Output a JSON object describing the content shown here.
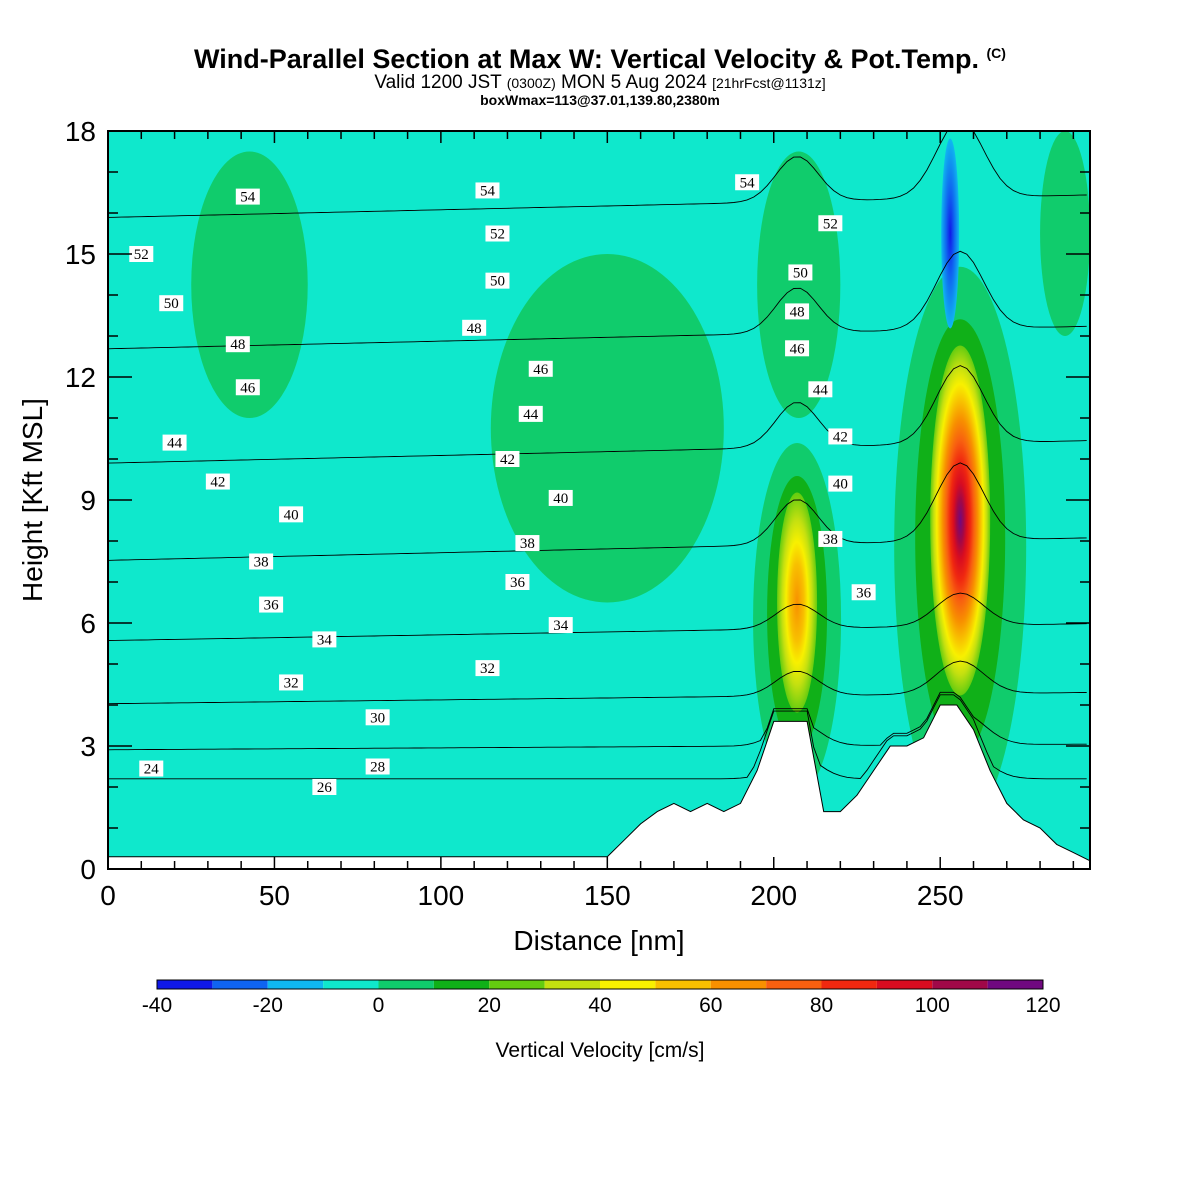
{
  "header": {
    "title": "Wind-Parallel Section at Max W: Vertical Velocity & Pot.Temp.",
    "copyright": "(C)",
    "valid_prefix": "Valid 1200 JST",
    "valid_utc": "(0300Z)",
    "valid_date": "MON 5 Aug 2024",
    "forecast": "[21hrFcst@1131z]",
    "boxinfo": "boxWmax=113@37.01,139.80,2380m"
  },
  "colorbar": {
    "title": "Vertical Velocity [cm/s]",
    "ticks": [
      "-40",
      "-20",
      "0",
      "20",
      "40",
      "60",
      "80",
      "100",
      "120"
    ],
    "levels": [
      -40,
      -30,
      -20,
      -10,
      0,
      10,
      20,
      30,
      40,
      50,
      60,
      70,
      80,
      90,
      100,
      110,
      120
    ],
    "colors": [
      "#1018e8",
      "#0f64f0",
      "#0fb8f0",
      "#0fe8cc",
      "#10cc6c",
      "#10b018",
      "#64cc10",
      "#c4e010",
      "#f8f000",
      "#f8c000",
      "#f89000",
      "#f86010",
      "#f02810",
      "#d80c20",
      "#a00848",
      "#700880"
    ]
  },
  "chart_data": {
    "type": "heatmap",
    "title": "Wind-Parallel Section at Max W: Vertical Velocity & Pot.Temp.",
    "xlabel": "Distance [nm]",
    "ylabel": "Height [Kft MSL]",
    "xlim": [
      0,
      295
    ],
    "ylim": [
      0,
      18
    ],
    "x_ticks": [
      "0",
      "50",
      "100",
      "150",
      "200",
      "250"
    ],
    "y_ticks": [
      "0",
      "3",
      "6",
      "9",
      "12",
      "15",
      "18"
    ],
    "field": "vertical velocity (cm/s)",
    "background_w": 0,
    "weak_ascent_zones_w_0_10": [
      {
        "x": [
          25,
          60
        ],
        "y": [
          11.0,
          17.5
        ]
      },
      {
        "x": [
          115,
          185
        ],
        "y": [
          6.5,
          15.0
        ]
      },
      {
        "x": [
          195,
          220
        ],
        "y": [
          11.0,
          17.5
        ]
      },
      {
        "x": [
          280,
          295
        ],
        "y": [
          13.0,
          18.0
        ]
      }
    ],
    "updraft_cores": [
      {
        "x": 207,
        "y": 6.5,
        "w_max": 50
      },
      {
        "x": 256,
        "y": 8.5,
        "w_max": 113
      }
    ],
    "downdraft_cores": [
      {
        "x": 253,
        "y": 15.5,
        "w_min": -40
      }
    ],
    "terrain_kft": {
      "x": [
        0,
        150,
        155,
        160,
        165,
        170,
        175,
        180,
        185,
        190,
        195,
        200,
        205,
        210,
        215,
        220,
        225,
        230,
        235,
        240,
        245,
        250,
        255,
        260,
        265,
        270,
        275,
        280,
        285,
        290,
        295
      ],
      "y": [
        0.3,
        0.3,
        0.7,
        1.1,
        1.4,
        1.6,
        1.4,
        1.6,
        1.4,
        1.6,
        2.4,
        3.6,
        3.6,
        3.6,
        1.4,
        1.4,
        1.8,
        2.4,
        3.0,
        3.0,
        3.2,
        4.0,
        4.0,
        3.4,
        2.4,
        1.6,
        1.2,
        1.0,
        0.6,
        0.4,
        0.2
      ]
    },
    "theta_contours": {
      "name": "Pot.Temp.",
      "levels": [
        24,
        26,
        28,
        30,
        32,
        34,
        36,
        38,
        40,
        42,
        44,
        46,
        48,
        50,
        52,
        54
      ],
      "labels": [
        {
          "text": "24",
          "x": 13,
          "y": 2.45
        },
        {
          "text": "26",
          "x": 65,
          "y": 2.0
        },
        {
          "text": "28",
          "x": 81,
          "y": 2.5
        },
        {
          "text": "30",
          "x": 81,
          "y": 3.7
        },
        {
          "text": "32",
          "x": 55,
          "y": 4.55
        },
        {
          "text": "32",
          "x": 114,
          "y": 4.9
        },
        {
          "text": "34",
          "x": 65,
          "y": 5.6
        },
        {
          "text": "34",
          "x": 136,
          "y": 5.95
        },
        {
          "text": "36",
          "x": 49,
          "y": 6.45
        },
        {
          "text": "36",
          "x": 123,
          "y": 7.0
        },
        {
          "text": "36",
          "x": 227,
          "y": 6.75
        },
        {
          "text": "38",
          "x": 46,
          "y": 7.5
        },
        {
          "text": "38",
          "x": 126,
          "y": 7.95
        },
        {
          "text": "38",
          "x": 217,
          "y": 8.05
        },
        {
          "text": "40",
          "x": 55,
          "y": 8.65
        },
        {
          "text": "40",
          "x": 136,
          "y": 9.05
        },
        {
          "text": "40",
          "x": 220,
          "y": 9.4
        },
        {
          "text": "42",
          "x": 33,
          "y": 9.45
        },
        {
          "text": "42",
          "x": 120,
          "y": 10.0
        },
        {
          "text": "42",
          "x": 220,
          "y": 10.55
        },
        {
          "text": "44",
          "x": 20,
          "y": 10.4
        },
        {
          "text": "44",
          "x": 127,
          "y": 11.1
        },
        {
          "text": "44",
          "x": 214,
          "y": 11.7
        },
        {
          "text": "46",
          "x": 42,
          "y": 11.75
        },
        {
          "text": "46",
          "x": 130,
          "y": 12.2
        },
        {
          "text": "46",
          "x": 207,
          "y": 12.7
        },
        {
          "text": "48",
          "x": 39,
          "y": 12.8
        },
        {
          "text": "48",
          "x": 110,
          "y": 13.2
        },
        {
          "text": "48",
          "x": 207,
          "y": 13.6
        },
        {
          "text": "50",
          "x": 19,
          "y": 13.8
        },
        {
          "text": "50",
          "x": 117,
          "y": 14.35
        },
        {
          "text": "50",
          "x": 208,
          "y": 14.55
        },
        {
          "text": "52",
          "x": 10,
          "y": 15.0
        },
        {
          "text": "52",
          "x": 117,
          "y": 15.5
        },
        {
          "text": "52",
          "x": 217,
          "y": 15.75
        },
        {
          "text": "54",
          "x": 42,
          "y": 16.4
        },
        {
          "text": "54",
          "x": 114,
          "y": 16.55
        },
        {
          "text": "54",
          "x": 192,
          "y": 16.75
        }
      ]
    }
  }
}
